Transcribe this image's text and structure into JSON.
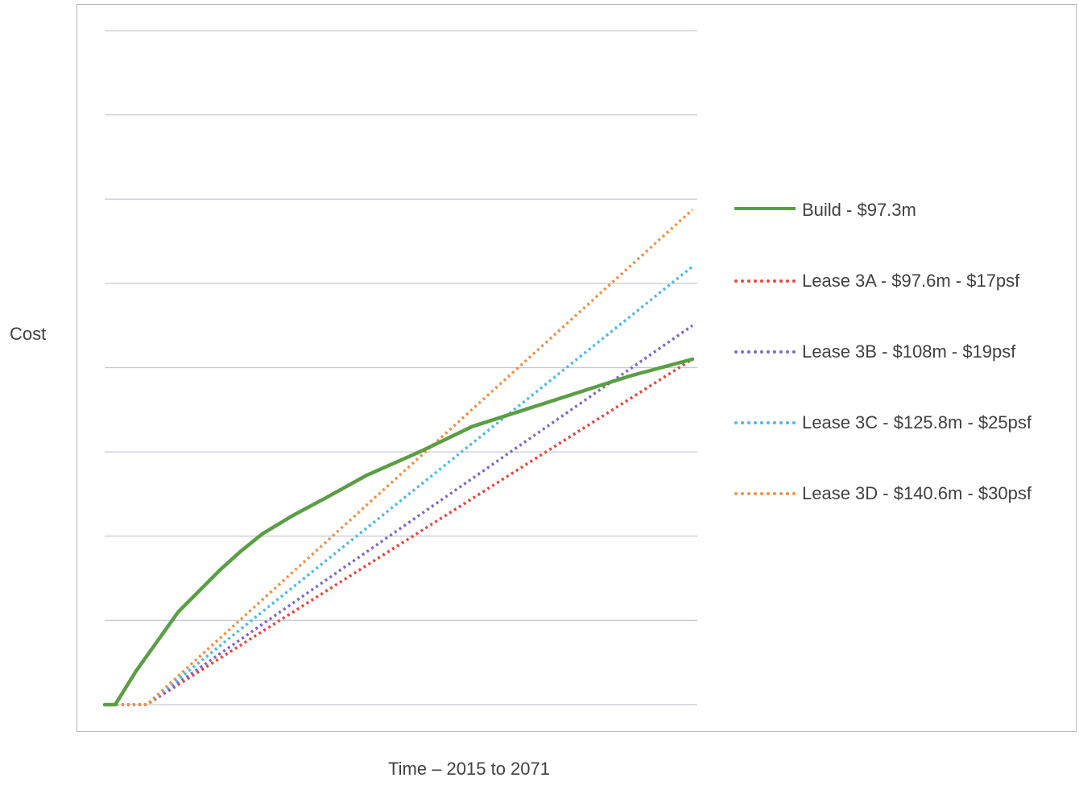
{
  "chart_data": {
    "type": "line",
    "title": "",
    "xlabel": "Time – 2015 to 2071",
    "ylabel": "Cost",
    "xlim": [
      2015,
      2071
    ],
    "ylim": [
      0,
      160
    ],
    "grid": true,
    "legend_position": "right",
    "series": [
      {
        "name": "Build - $97.3m",
        "color": "#5a9e45",
        "style": "solid",
        "x": [
          2015,
          2016,
          2017,
          2018,
          2020,
          2022,
          2024,
          2026,
          2028,
          2030,
          2033,
          2036,
          2040,
          2045,
          2050,
          2055,
          2060,
          2065,
          2071
        ],
        "y": [
          0,
          0,
          4,
          8,
          15,
          22,
          27,
          32,
          36.5,
          40.5,
          45,
          49,
          54.5,
          60,
          66,
          70,
          74,
          78,
          82
        ]
      },
      {
        "name": "Lease 3A - $97.6m - $17psf",
        "color": "#e8463c",
        "style": "dotted",
        "x": [
          2015,
          2019,
          2071
        ],
        "y": [
          0,
          0,
          82
        ]
      },
      {
        "name": "Lease 3B - $108m - $19psf",
        "color": "#8068c8",
        "style": "dotted",
        "x": [
          2015,
          2019,
          2071
        ],
        "y": [
          0,
          0,
          90
        ]
      },
      {
        "name": "Lease 3C - $125.8m - $25psf",
        "color": "#4fb8e8",
        "style": "dotted",
        "x": [
          2015,
          2019,
          2071
        ],
        "y": [
          0,
          0,
          104
        ]
      },
      {
        "name": "Lease 3D - $140.6m - $30psf",
        "color": "#f0904a",
        "style": "dotted",
        "x": [
          2015,
          2019,
          2071
        ],
        "y": [
          0,
          0,
          117.5
        ]
      }
    ]
  },
  "colors": {
    "gridline": "#c7c7d3",
    "frame": "#b8b8b8"
  }
}
